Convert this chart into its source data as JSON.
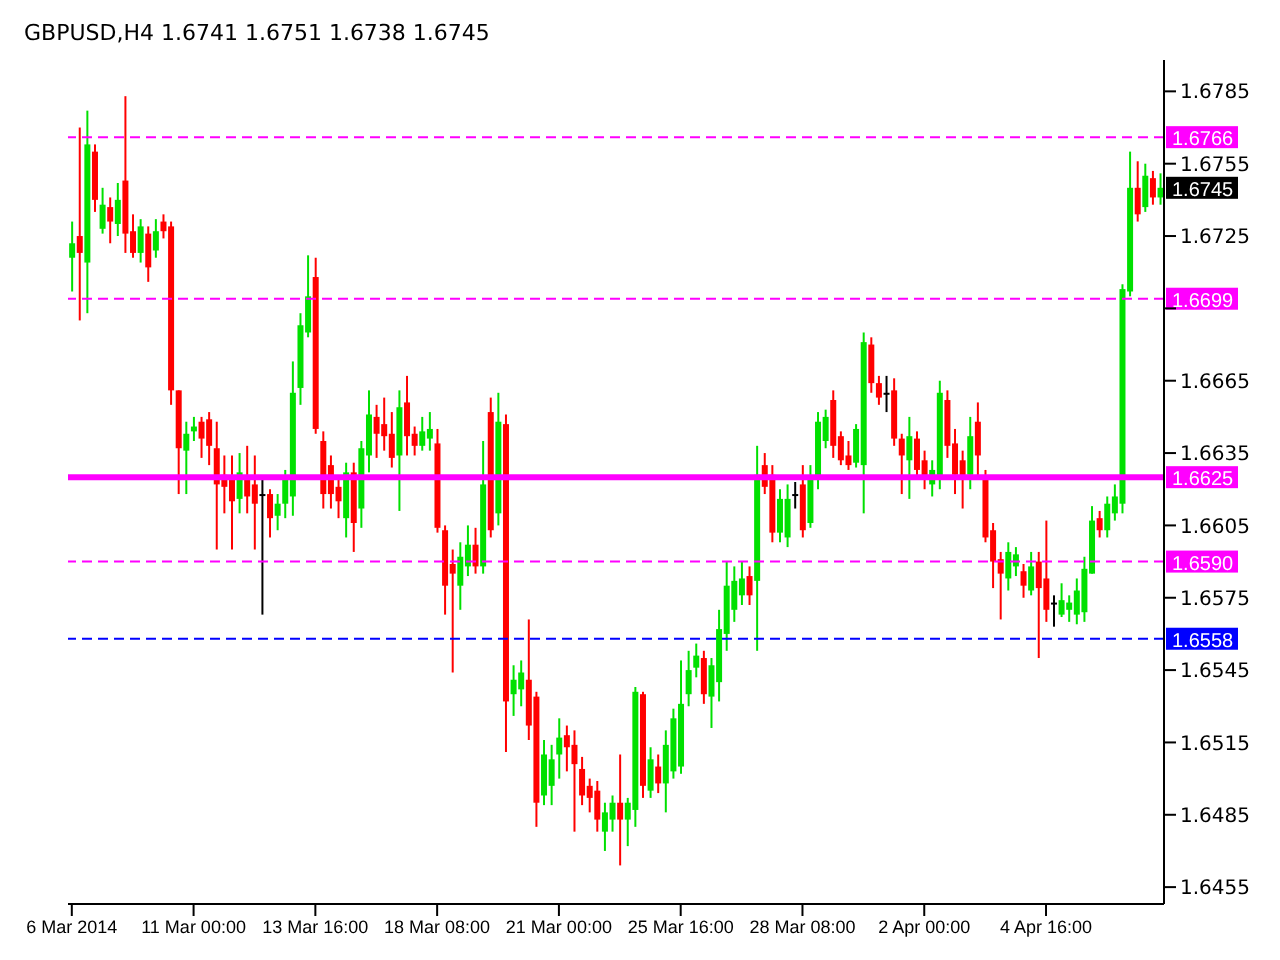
{
  "chart_data": {
    "type": "candlestick",
    "title": "GBPUSD,H4  1.6741 1.6751 1.6738 1.6745",
    "categories": [
      "6 Mar 2014",
      null,
      null,
      null,
      null,
      null,
      null,
      null,
      null,
      null,
      null,
      null,
      null,
      null,
      null,
      null,
      "11 Mar 00:00",
      null,
      null,
      null,
      null,
      null,
      null,
      null,
      null,
      null,
      null,
      null,
      null,
      null,
      null,
      null,
      "13 Mar 16:00",
      null,
      null,
      null,
      null,
      null,
      null,
      null,
      null,
      null,
      null,
      null,
      null,
      null,
      null,
      null,
      "18 Mar 08:00",
      null,
      null,
      null,
      null,
      null,
      null,
      null,
      null,
      null,
      null,
      null,
      null,
      null,
      null,
      null,
      "21 Mar 00:00",
      null,
      null,
      null,
      null,
      null,
      null,
      null,
      null,
      null,
      null,
      null,
      null,
      null,
      null,
      null,
      "25 Mar 16:00",
      null,
      null,
      null,
      null,
      null,
      null,
      null,
      null,
      null,
      null,
      null,
      null,
      null,
      null,
      null,
      "28 Mar 08:00",
      null,
      null,
      null,
      null,
      null,
      null,
      null,
      null,
      null,
      null,
      null,
      null,
      null,
      null,
      null,
      "2 Apr 00:00",
      null,
      null,
      null,
      null,
      null,
      null,
      null,
      null,
      null,
      null,
      null,
      null,
      null,
      null,
      null,
      "4 Apr 16:00",
      null,
      null,
      null,
      null,
      null,
      null,
      null,
      null,
      null,
      null,
      null,
      null,
      null,
      null,
      null
    ],
    "ohlc": [
      [
        1.6716,
        1.6731,
        1.6702,
        1.6722
      ],
      [
        1.6725,
        1.677,
        1.669,
        1.6718
      ],
      [
        1.6714,
        1.6777,
        1.6693,
        1.6763
      ],
      [
        1.676,
        1.6763,
        1.6735,
        1.674
      ],
      [
        1.6728,
        1.6745,
        1.6726,
        1.6738
      ],
      [
        1.6737,
        1.6741,
        1.6722,
        1.6731
      ],
      [
        1.673,
        1.6747,
        1.6725,
        1.674
      ],
      [
        1.6748,
        1.6783,
        1.6718,
        1.6726
      ],
      [
        1.6727,
        1.6734,
        1.6716,
        1.6718
      ],
      [
        1.6718,
        1.6732,
        1.6714,
        1.6729
      ],
      [
        1.6726,
        1.6729,
        1.6706,
        1.6712
      ],
      [
        1.6719,
        1.6732,
        1.6716,
        1.6727
      ],
      [
        1.6731,
        1.6734,
        1.6724,
        1.6727
      ],
      [
        1.6729,
        1.6731,
        1.6655,
        1.6661
      ],
      [
        1.6661,
        1.6661,
        1.6618,
        1.6637
      ],
      [
        1.6636,
        1.6648,
        1.6618,
        1.6643
      ],
      [
        1.6644,
        1.665,
        1.664,
        1.6646
      ],
      [
        1.6648,
        1.665,
        1.6633,
        1.6641
      ],
      [
        1.6649,
        1.6652,
        1.663,
        1.6638
      ],
      [
        1.6637,
        1.6648,
        1.6595,
        1.6622
      ],
      [
        1.6626,
        1.6634,
        1.661,
        1.6621
      ],
      [
        1.6625,
        1.6634,
        1.6595,
        1.6615
      ],
      [
        1.6616,
        1.6635,
        1.661,
        1.6627
      ],
      [
        1.6625,
        1.6638,
        1.661,
        1.6617
      ],
      [
        1.6622,
        1.6634,
        1.6595,
        1.6614
      ],
      [
        1.6618,
        1.6625,
        1.6568,
        1.6618
      ],
      [
        1.6618,
        1.662,
        1.66,
        1.6608
      ],
      [
        1.6609,
        1.6618,
        1.6603,
        1.6614
      ],
      [
        1.6614,
        1.6628,
        1.6608,
        1.6624
      ],
      [
        1.6617,
        1.6673,
        1.6609,
        1.666
      ],
      [
        1.6662,
        1.6693,
        1.6655,
        1.6688
      ],
      [
        1.6685,
        1.6717,
        1.6683,
        1.67
      ],
      [
        1.6708,
        1.6716,
        1.6643,
        1.6645
      ],
      [
        1.664,
        1.6644,
        1.6612,
        1.6618
      ],
      [
        1.663,
        1.6634,
        1.6612,
        1.6618
      ],
      [
        1.6621,
        1.6625,
        1.6608,
        1.6615
      ],
      [
        1.6608,
        1.6631,
        1.66,
        1.6627
      ],
      [
        1.6627,
        1.6631,
        1.6594,
        1.6606
      ],
      [
        1.6612,
        1.664,
        1.6604,
        1.6637
      ],
      [
        1.6634,
        1.6661,
        1.6627,
        1.6651
      ],
      [
        1.665,
        1.6655,
        1.6633,
        1.6643
      ],
      [
        1.6647,
        1.6658,
        1.6636,
        1.6642
      ],
      [
        1.6643,
        1.6652,
        1.6629,
        1.6633
      ],
      [
        1.6634,
        1.6661,
        1.6611,
        1.6654
      ],
      [
        1.6656,
        1.6667,
        1.6634,
        1.6642
      ],
      [
        1.6643,
        1.6646,
        1.6634,
        1.6638
      ],
      [
        1.6638,
        1.665,
        1.6636,
        1.6644
      ],
      [
        1.6641,
        1.6652,
        1.6636,
        1.6645
      ],
      [
        1.6639,
        1.6645,
        1.6602,
        1.6604
      ],
      [
        1.6603,
        1.6605,
        1.6568,
        1.658
      ],
      [
        1.6589,
        1.6595,
        1.6544,
        1.6585
      ],
      [
        1.658,
        1.6598,
        1.657,
        1.6592
      ],
      [
        1.6588,
        1.6605,
        1.6584,
        1.6597
      ],
      [
        1.6597,
        1.6604,
        1.6585,
        1.6588
      ],
      [
        1.6588,
        1.664,
        1.6585,
        1.6622
      ],
      [
        1.6652,
        1.6658,
        1.66,
        1.6603
      ],
      [
        1.661,
        1.666,
        1.6605,
        1.6648
      ],
      [
        1.6647,
        1.6651,
        1.6511,
        1.6532
      ],
      [
        1.6535,
        1.6547,
        1.6526,
        1.6541
      ],
      [
        1.6537,
        1.6549,
        1.653,
        1.6544
      ],
      [
        1.6541,
        1.6566,
        1.6516,
        1.6522
      ],
      [
        1.6534,
        1.6536,
        1.648,
        1.649
      ],
      [
        1.6493,
        1.6516,
        1.6489,
        1.651
      ],
      [
        1.6497,
        1.6514,
        1.6489,
        1.6508
      ],
      [
        1.651,
        1.6525,
        1.65,
        1.6517
      ],
      [
        1.6518,
        1.6522,
        1.6503,
        1.6513
      ],
      [
        1.6514,
        1.652,
        1.6478,
        1.6506
      ],
      [
        1.6504,
        1.6509,
        1.6489,
        1.6493
      ],
      [
        1.6497,
        1.65,
        1.6486,
        1.6492
      ],
      [
        1.6495,
        1.6499,
        1.6478,
        1.6483
      ],
      [
        1.6478,
        1.649,
        1.647,
        1.6486
      ],
      [
        1.6483,
        1.6493,
        1.6478,
        1.649
      ],
      [
        1.649,
        1.651,
        1.6464,
        1.6483
      ],
      [
        1.6483,
        1.6492,
        1.6472,
        1.649
      ],
      [
        1.6487,
        1.6538,
        1.648,
        1.6536
      ],
      [
        1.6535,
        1.6536,
        1.6492,
        1.6497
      ],
      [
        1.6495,
        1.6513,
        1.6492,
        1.6508
      ],
      [
        1.6505,
        1.651,
        1.6494,
        1.6498
      ],
      [
        1.6498,
        1.652,
        1.6486,
        1.6514
      ],
      [
        1.6503,
        1.6529,
        1.65,
        1.6525
      ],
      [
        1.6505,
        1.6549,
        1.6502,
        1.6531
      ],
      [
        1.6535,
        1.6553,
        1.653,
        1.6545
      ],
      [
        1.6546,
        1.6556,
        1.6542,
        1.6551
      ],
      [
        1.655,
        1.6553,
        1.6531,
        1.6535
      ],
      [
        1.6534,
        1.655,
        1.6521,
        1.6547
      ],
      [
        1.654,
        1.657,
        1.6532,
        1.6562
      ],
      [
        1.656,
        1.659,
        1.6553,
        1.658
      ],
      [
        1.657,
        1.6588,
        1.6565,
        1.6582
      ],
      [
        1.6576,
        1.659,
        1.6572,
        1.6583
      ],
      [
        1.6584,
        1.6588,
        1.6572,
        1.6576
      ],
      [
        1.6582,
        1.6638,
        1.6553,
        1.6626
      ],
      [
        1.663,
        1.6635,
        1.6618,
        1.6621
      ],
      [
        1.6626,
        1.663,
        1.6598,
        1.6602
      ],
      [
        1.6602,
        1.662,
        1.6598,
        1.6616
      ],
      [
        1.66,
        1.6622,
        1.6596,
        1.6616
      ],
      [
        1.6618,
        1.6623,
        1.6612,
        1.6618
      ],
      [
        1.6622,
        1.663,
        1.66,
        1.6603
      ],
      [
        1.6606,
        1.663,
        1.6604,
        1.6625
      ],
      [
        1.6624,
        1.6652,
        1.662,
        1.6648
      ],
      [
        1.664,
        1.6653,
        1.6637,
        1.665
      ],
      [
        1.6657,
        1.6661,
        1.6633,
        1.6638
      ],
      [
        1.6642,
        1.6644,
        1.663,
        1.6632
      ],
      [
        1.6634,
        1.664,
        1.6628,
        1.663
      ],
      [
        1.6631,
        1.6647,
        1.6629,
        1.6645
      ],
      [
        1.663,
        1.6685,
        1.661,
        1.6681
      ],
      [
        1.668,
        1.6683,
        1.666,
        1.6664
      ],
      [
        1.6664,
        1.6667,
        1.6655,
        1.6658
      ],
      [
        1.666,
        1.6667,
        1.6652,
        1.666
      ],
      [
        1.6661,
        1.6666,
        1.6638,
        1.6641
      ],
      [
        1.6641,
        1.6643,
        1.6618,
        1.6634
      ],
      [
        1.6632,
        1.665,
        1.6616,
        1.6642
      ],
      [
        1.6641,
        1.6644,
        1.6624,
        1.6628
      ],
      [
        1.6632,
        1.6636,
        1.662,
        1.6624
      ],
      [
        1.6622,
        1.6632,
        1.6617,
        1.6628
      ],
      [
        1.6625,
        1.6665,
        1.662,
        1.666
      ],
      [
        1.6657,
        1.6661,
        1.6633,
        1.6638
      ],
      [
        1.6639,
        1.6645,
        1.6618,
        1.6626
      ],
      [
        1.6632,
        1.6636,
        1.6612,
        1.6624
      ],
      [
        1.6626,
        1.665,
        1.662,
        1.6642
      ],
      [
        1.6648,
        1.6656,
        1.6624,
        1.6634
      ],
      [
        1.6625,
        1.6628,
        1.6598,
        1.66
      ],
      [
        1.6603,
        1.6606,
        1.6579,
        1.659
      ],
      [
        1.6591,
        1.6594,
        1.6566,
        1.6585
      ],
      [
        1.6583,
        1.6598,
        1.6578,
        1.6594
      ],
      [
        1.6588,
        1.6596,
        1.6584,
        1.6593
      ],
      [
        1.6586,
        1.6589,
        1.6575,
        1.658
      ],
      [
        1.6578,
        1.6594,
        1.6576,
        1.6588
      ],
      [
        1.659,
        1.6594,
        1.655,
        1.6579
      ],
      [
        1.6583,
        1.6607,
        1.6565,
        1.657
      ],
      [
        1.6573,
        1.6576,
        1.6563,
        1.6573
      ],
      [
        1.6568,
        1.6581,
        1.6567,
        1.6574
      ],
      [
        1.657,
        1.6576,
        1.6565,
        1.6573
      ],
      [
        1.6568,
        1.6583,
        1.6564,
        1.6578
      ],
      [
        1.6569,
        1.6592,
        1.6565,
        1.6587
      ],
      [
        1.6585,
        1.6613,
        1.6585,
        1.6607
      ],
      [
        1.6608,
        1.6611,
        1.66,
        1.6603
      ],
      [
        1.6603,
        1.6617,
        1.66,
        1.6614
      ],
      [
        1.661,
        1.6622,
        1.6607,
        1.6617
      ],
      [
        1.6614,
        1.6705,
        1.661,
        1.6703
      ],
      [
        1.6702,
        1.676,
        1.67,
        1.6745
      ],
      [
        1.6745,
        1.6756,
        1.6731,
        1.6734
      ],
      [
        1.6737,
        1.6755,
        1.6735,
        1.675
      ],
      [
        1.6749,
        1.6752,
        1.6738,
        1.6741
      ],
      [
        1.6741,
        1.6751,
        1.6738,
        1.6745
      ]
    ],
    "ylim": [
      1.6448,
      1.6798
    ],
    "yticks": [
      1.6455,
      1.6485,
      1.6515,
      1.6545,
      1.6575,
      1.6605,
      1.6635,
      1.6665,
      {
        "value": 1.6695,
        "label": null
      },
      1.6725,
      1.6755,
      1.6785
    ],
    "ref_lines": [
      {
        "axis": "y",
        "value": 1.6766,
        "label": "1.6766",
        "color": "#ff00ff",
        "line_style": "dashed"
      },
      {
        "axis": "y",
        "value": 1.6699,
        "label": "1.6699",
        "color": "#ff00ff",
        "line_style": "dashed"
      },
      {
        "axis": "y",
        "value": 1.6625,
        "label": "1.6625",
        "color": "#ff00ff",
        "line_style": "solid"
      },
      {
        "axis": "y",
        "value": 1.659,
        "label": "1.6590",
        "color": "#ff00ff",
        "line_style": "dashed"
      },
      {
        "axis": "y",
        "value": 1.6558,
        "label": "1.6558",
        "color": "#0000ff",
        "line_style": "dashed"
      }
    ],
    "annotations": [
      "1.6745"
    ]
  }
}
